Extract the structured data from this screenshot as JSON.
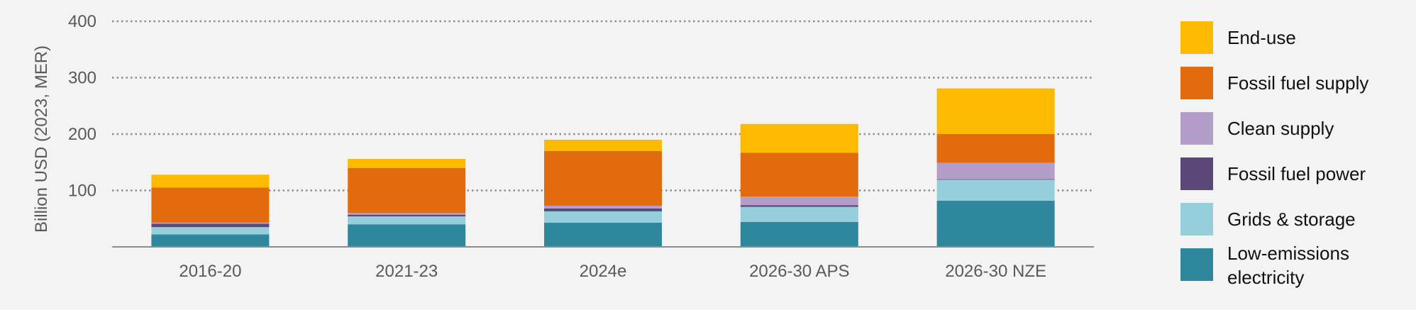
{
  "chart_data": {
    "type": "bar",
    "stacked": true,
    "title": "",
    "xlabel": "",
    "ylabel": "Billion USD (2023, MER)",
    "ylim": [
      0,
      400
    ],
    "yticks": [
      100,
      200,
      300,
      400
    ],
    "grid": true,
    "legend_position": "right",
    "categories": [
      "2016-20",
      "2021-23",
      "2024e",
      "2026-30 APS",
      "2026-30 NZE"
    ],
    "series": [
      {
        "name": "Low-emissions electricity",
        "color": "#2e879c",
        "values": [
          22,
          40,
          43,
          44,
          82
        ]
      },
      {
        "name": "Grids & storage",
        "color": "#96cfdc",
        "values": [
          13,
          14,
          20,
          27,
          37
        ]
      },
      {
        "name": "Fossil fuel power",
        "color": "#5c4878",
        "values": [
          6,
          3,
          5,
          3,
          1
        ]
      },
      {
        "name": "Clean supply",
        "color": "#b29ec8",
        "values": [
          2,
          3,
          5,
          15,
          29
        ]
      },
      {
        "name": "Fossil fuel supply",
        "color": "#e26b0e",
        "values": [
          62,
          80,
          97,
          78,
          51
        ]
      },
      {
        "name": "End-use",
        "color": "#fdba00",
        "values": [
          23,
          16,
          20,
          51,
          81
        ]
      }
    ],
    "legend_order": [
      "End-use",
      "Fossil fuel supply",
      "Clean supply",
      "Fossil fuel power",
      "Grids & storage",
      "Low-emissions electricity"
    ]
  }
}
